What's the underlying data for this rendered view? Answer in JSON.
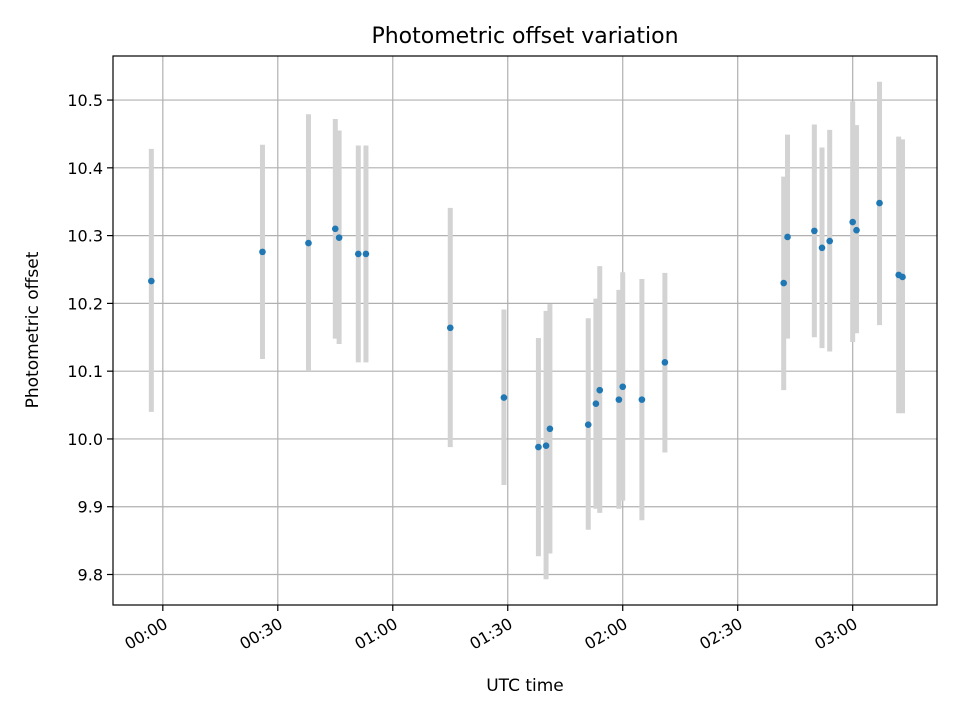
{
  "chart_data": {
    "type": "scatter",
    "title": "Photometric offset variation",
    "xlabel": "UTC time",
    "ylabel": "Photometric offset",
    "x_tick_labels": [
      "00:00",
      "00:30",
      "01:00",
      "01:30",
      "02:00",
      "02:30",
      "03:00"
    ],
    "y_tick_labels": [
      "9.8",
      "9.9",
      "10.0",
      "10.1",
      "10.2",
      "10.3",
      "10.4",
      "10.5"
    ],
    "xlim": [
      "23:47",
      "03:22"
    ],
    "ylim": [
      9.755,
      10.565
    ],
    "grid": true,
    "colors": {
      "point": "#1f77b4",
      "errorbar": "#d3d3d3",
      "grid": "#b0b0b0"
    },
    "points": [
      {
        "time": "23:57",
        "y": 10.233,
        "lo": 10.04,
        "hi": 10.428
      },
      {
        "time": "00:26",
        "y": 10.276,
        "lo": 10.118,
        "hi": 10.434
      },
      {
        "time": "00:38",
        "y": 10.289,
        "lo": 10.1,
        "hi": 10.479
      },
      {
        "time": "00:45",
        "y": 10.31,
        "lo": 10.148,
        "hi": 10.472
      },
      {
        "time": "00:46",
        "y": 10.297,
        "lo": 10.14,
        "hi": 10.455
      },
      {
        "time": "00:51",
        "y": 10.273,
        "lo": 10.113,
        "hi": 10.433
      },
      {
        "time": "00:53",
        "y": 10.273,
        "lo": 10.113,
        "hi": 10.433
      },
      {
        "time": "01:15",
        "y": 10.164,
        "lo": 9.988,
        "hi": 10.341
      },
      {
        "time": "01:29",
        "y": 10.061,
        "lo": 9.932,
        "hi": 10.191
      },
      {
        "time": "01:38",
        "y": 9.988,
        "lo": 9.827,
        "hi": 10.149
      },
      {
        "time": "01:40",
        "y": 9.99,
        "lo": 9.793,
        "hi": 10.189
      },
      {
        "time": "01:41",
        "y": 10.015,
        "lo": 9.831,
        "hi": 10.199
      },
      {
        "time": "01:51",
        "y": 10.021,
        "lo": 9.866,
        "hi": 10.178
      },
      {
        "time": "01:53",
        "y": 10.052,
        "lo": 9.897,
        "hi": 10.207
      },
      {
        "time": "01:54",
        "y": 10.072,
        "lo": 9.891,
        "hi": 10.255
      },
      {
        "time": "01:59",
        "y": 10.058,
        "lo": 9.897,
        "hi": 10.22
      },
      {
        "time": "02:00",
        "y": 10.077,
        "lo": 9.909,
        "hi": 10.246
      },
      {
        "time": "02:05",
        "y": 10.058,
        "lo": 9.88,
        "hi": 10.236
      },
      {
        "time": "02:11",
        "y": 10.113,
        "lo": 9.98,
        "hi": 10.245
      },
      {
        "time": "02:42",
        "y": 10.23,
        "lo": 10.072,
        "hi": 10.387
      },
      {
        "time": "02:43",
        "y": 10.298,
        "lo": 10.148,
        "hi": 10.449
      },
      {
        "time": "02:50",
        "y": 10.307,
        "lo": 10.15,
        "hi": 10.464
      },
      {
        "time": "02:52",
        "y": 10.282,
        "lo": 10.134,
        "hi": 10.43
      },
      {
        "time": "02:54",
        "y": 10.292,
        "lo": 10.129,
        "hi": 10.456
      },
      {
        "time": "03:00",
        "y": 10.32,
        "lo": 10.143,
        "hi": 10.498
      },
      {
        "time": "03:01",
        "y": 10.308,
        "lo": 10.156,
        "hi": 10.463
      },
      {
        "time": "03:07",
        "y": 10.348,
        "lo": 10.168,
        "hi": 10.527
      },
      {
        "time": "03:12",
        "y": 10.242,
        "lo": 10.038,
        "hi": 10.446
      },
      {
        "time": "03:13",
        "y": 10.239,
        "lo": 10.038,
        "hi": 10.442
      }
    ]
  }
}
